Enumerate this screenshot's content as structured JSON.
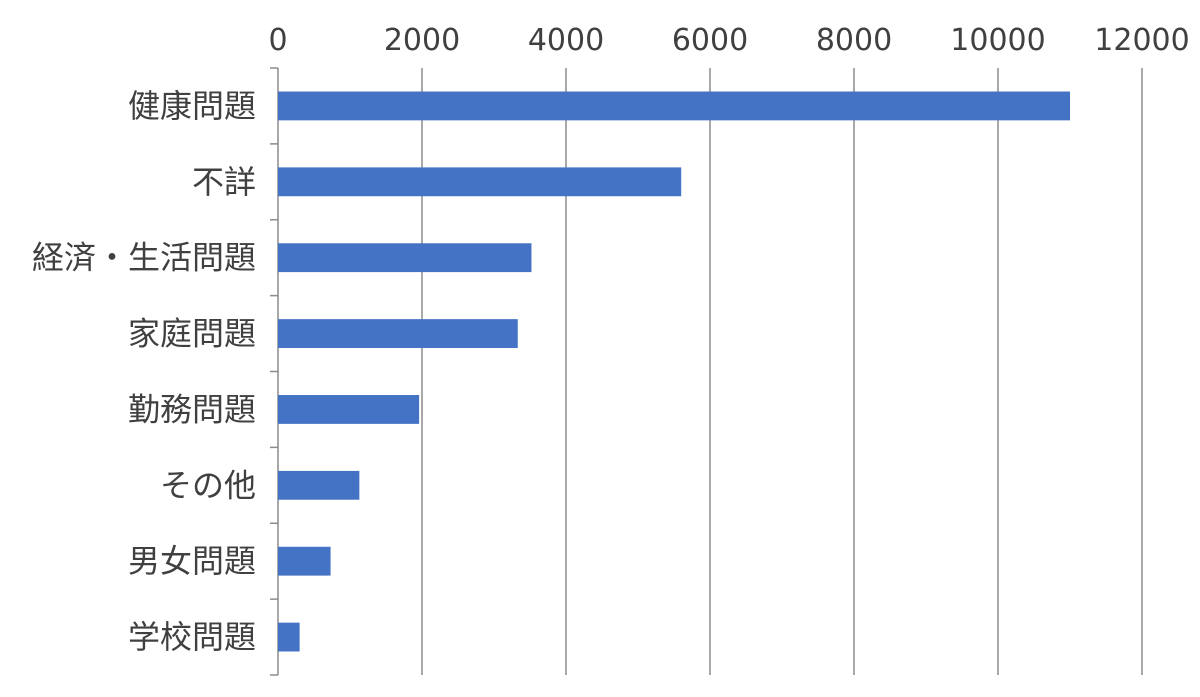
{
  "chart_data": {
    "type": "bar",
    "orientation": "horizontal",
    "categories": [
      "健康問題",
      "不詳",
      "経済・生活問題",
      "家庭問題",
      "勤務問題",
      "その他",
      "男女問題",
      "学校問題"
    ],
    "values": [
      11000,
      5600,
      3520,
      3330,
      1960,
      1130,
      730,
      300
    ],
    "xlim": [
      0,
      12000
    ],
    "xticks": [
      "0",
      "2000",
      "4000",
      "6000",
      "8000",
      "10000",
      "12000"
    ],
    "x_axis_position": "top",
    "grid": true,
    "legend": "none",
    "bar_color": "#4472c4"
  }
}
